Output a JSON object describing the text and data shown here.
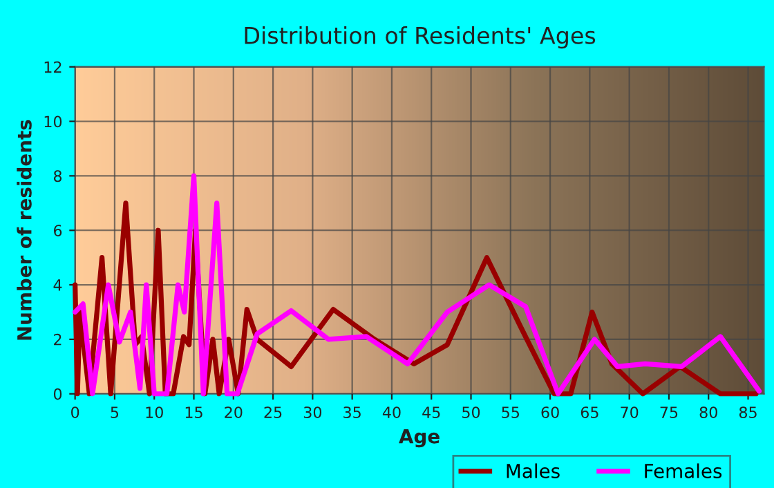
{
  "chart_data": {
    "type": "line",
    "title": "Distribution of Residents' Ages",
    "xlabel": "Age",
    "ylabel": "Number of residents",
    "xlim": [
      0,
      87
    ],
    "xticks": [
      0,
      5,
      10,
      15,
      20,
      25,
      30,
      35,
      40,
      45,
      50,
      55,
      60,
      65,
      70,
      75,
      80,
      85
    ],
    "ylim": [
      0,
      12
    ],
    "yticks": [
      0,
      2,
      4,
      6,
      8,
      10,
      12
    ],
    "grid": true,
    "legend": "bottom",
    "marker": "none",
    "line_style": "solid",
    "series": [
      {
        "name": "Males",
        "color": "#990000",
        "x": [
          0,
          0.3,
          0.6,
          1.8,
          3.4,
          4.5,
          6.4,
          7.6,
          8.4,
          9.4,
          10.5,
          11.4,
          12.4,
          13.7,
          14.4,
          15.2,
          16.4,
          17.4,
          18.2,
          19.4,
          20.6,
          21.7,
          23,
          27.3,
          32.6,
          37.8,
          42.8,
          47,
          52,
          56.2,
          60.5,
          62.6,
          65.3,
          67.8,
          71.7,
          76.4,
          81.5,
          86
        ],
        "values": [
          4,
          0,
          3,
          0,
          5,
          0,
          7,
          1.8,
          2.1,
          0,
          6,
          0,
          0,
          2.1,
          1.8,
          6,
          0,
          2,
          0,
          2,
          0,
          3.1,
          2,
          1,
          3.1,
          2,
          1.1,
          1.8,
          5,
          2.5,
          0,
          0,
          3,
          1.1,
          0,
          1,
          0,
          0
        ]
      },
      {
        "name": "Females",
        "color": "#ff00ff",
        "x": [
          0,
          1,
          2.2,
          4.2,
          5.6,
          7,
          8.2,
          9,
          10,
          11.6,
          13,
          13.8,
          15,
          16.2,
          17.9,
          19.2,
          20.5,
          23,
          27.3,
          32,
          36.8,
          42,
          47,
          52.3,
          56.9,
          61,
          65.6,
          68.5,
          72,
          76.6,
          81.5,
          86.4
        ],
        "values": [
          3,
          3.3,
          0,
          4,
          1.9,
          3,
          0.2,
          4,
          0,
          0,
          4,
          3,
          8,
          0,
          7,
          0,
          0,
          2.2,
          3.05,
          2,
          2.1,
          1.1,
          3,
          4,
          3.2,
          0,
          2,
          1,
          1.1,
          1,
          2.1,
          0.1
        ]
      }
    ]
  }
}
